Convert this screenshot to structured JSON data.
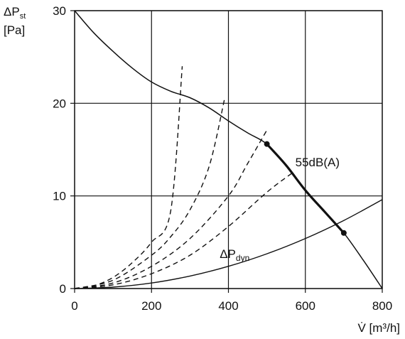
{
  "chart_data": {
    "type": "line",
    "ylabel_line1": "ΔP",
    "ylabel_line1_sub": "st",
    "ylabel_line2": "[Pa]",
    "xlabel": "V̇ [m³/h]",
    "xlim": [
      0,
      800
    ],
    "ylim": [
      0,
      30
    ],
    "x_ticks": [
      0,
      200,
      400,
      600,
      800
    ],
    "y_ticks": [
      0,
      10,
      20,
      30
    ],
    "grid": true,
    "series": [
      {
        "style": "solid",
        "points": [
          [
            0,
            30
          ],
          [
            50,
            27.6
          ],
          [
            100,
            25.6
          ],
          [
            150,
            23.8
          ],
          [
            200,
            22.3
          ],
          [
            250,
            21.3
          ],
          [
            300,
            20.6
          ],
          [
            350,
            19.5
          ],
          [
            400,
            18.1
          ],
          [
            450,
            16.8
          ],
          [
            500,
            15.6
          ],
          [
            550,
            13.3
          ],
          [
            600,
            10.6
          ],
          [
            650,
            8.3
          ],
          [
            700,
            6.0
          ],
          [
            750,
            3.1
          ],
          [
            800,
            0
          ]
        ]
      },
      {
        "style": "bold",
        "annotation": "55dB(A)",
        "points": [
          [
            500,
            15.6
          ],
          [
            550,
            13.3
          ],
          [
            600,
            10.6
          ],
          [
            650,
            8.3
          ],
          [
            700,
            6.0
          ]
        ],
        "markers": [
          [
            500,
            15.6
          ],
          [
            700,
            6.0
          ]
        ]
      },
      {
        "name": "ΔP",
        "name_sub": "dyn",
        "style": "solid-thin",
        "points": [
          [
            0,
            0
          ],
          [
            100,
            0.15
          ],
          [
            200,
            0.6
          ],
          [
            300,
            1.35
          ],
          [
            400,
            2.4
          ],
          [
            500,
            3.75
          ],
          [
            600,
            5.4
          ],
          [
            700,
            7.35
          ],
          [
            800,
            9.6
          ]
        ]
      },
      {
        "style": "dashed",
        "points": [
          [
            0,
            0
          ],
          [
            50,
            0.3
          ],
          [
            100,
            1.2
          ],
          [
            150,
            2.8
          ],
          [
            200,
            5.0
          ],
          [
            250,
            8.4
          ],
          [
            280,
            24
          ]
        ]
      },
      {
        "style": "dashed",
        "points": [
          [
            0,
            0
          ],
          [
            100,
            0.9
          ],
          [
            200,
            3.6
          ],
          [
            250,
            5.6
          ],
          [
            300,
            8.5
          ],
          [
            350,
            13.2
          ],
          [
            390,
            20.5
          ]
        ]
      },
      {
        "style": "dashed",
        "points": [
          [
            0,
            0
          ],
          [
            100,
            0.6
          ],
          [
            200,
            2.4
          ],
          [
            300,
            5.4
          ],
          [
            400,
            10.0
          ],
          [
            450,
            13.5
          ],
          [
            500,
            17.1
          ]
        ]
      },
      {
        "style": "dashed",
        "points": [
          [
            0,
            0
          ],
          [
            100,
            0.4
          ],
          [
            200,
            1.6
          ],
          [
            300,
            3.6
          ],
          [
            400,
            6.7
          ],
          [
            500,
            10.4
          ],
          [
            570,
            12.6
          ]
        ]
      }
    ],
    "annotations": [
      {
        "text": "55dB(A)",
        "x": 585,
        "y": 13.2
      },
      {
        "text_main": "ΔP",
        "text_sub": "dyn",
        "x": 455,
        "y": 3.3
      }
    ]
  }
}
